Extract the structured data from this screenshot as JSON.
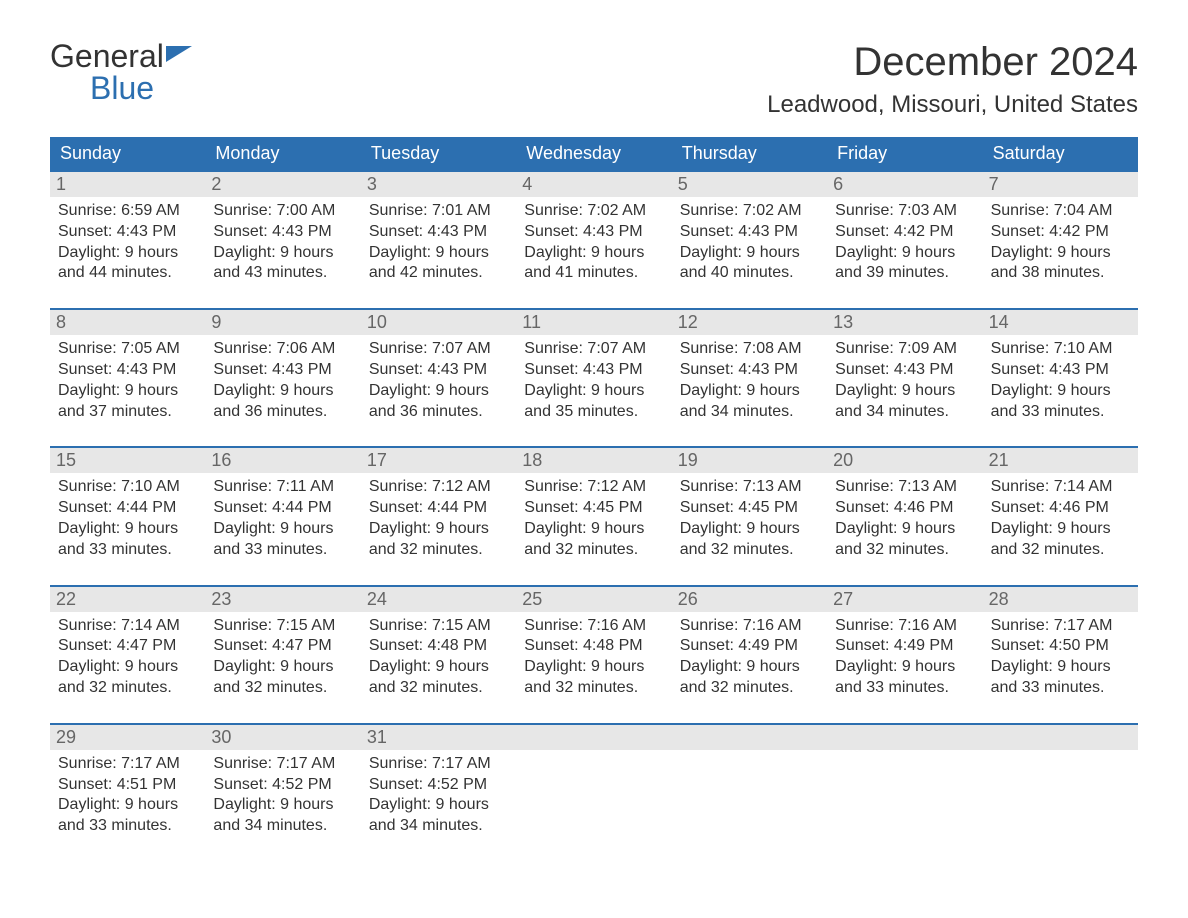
{
  "logo": {
    "line1": "General",
    "line2": "Blue"
  },
  "title": "December 2024",
  "location": "Leadwood, Missouri, United States",
  "colors": {
    "header_bg": "#2c6fb0",
    "header_text": "#ffffff",
    "daynum_bg": "#e7e7e7",
    "daynum_text": "#666666",
    "body_text": "#333333",
    "rule": "#2c6fb0",
    "page_bg": "#ffffff"
  },
  "typography": {
    "title_fontsize": 40,
    "location_fontsize": 24,
    "dow_fontsize": 18,
    "daynum_fontsize": 18,
    "cell_fontsize": 16
  },
  "days_of_week": [
    "Sunday",
    "Monday",
    "Tuesday",
    "Wednesday",
    "Thursday",
    "Friday",
    "Saturday"
  ],
  "weeks": [
    [
      {
        "n": "1",
        "sunrise": "Sunrise: 6:59 AM",
        "sunset": "Sunset: 4:43 PM",
        "d1": "Daylight: 9 hours",
        "d2": "and 44 minutes."
      },
      {
        "n": "2",
        "sunrise": "Sunrise: 7:00 AM",
        "sunset": "Sunset: 4:43 PM",
        "d1": "Daylight: 9 hours",
        "d2": "and 43 minutes."
      },
      {
        "n": "3",
        "sunrise": "Sunrise: 7:01 AM",
        "sunset": "Sunset: 4:43 PM",
        "d1": "Daylight: 9 hours",
        "d2": "and 42 minutes."
      },
      {
        "n": "4",
        "sunrise": "Sunrise: 7:02 AM",
        "sunset": "Sunset: 4:43 PM",
        "d1": "Daylight: 9 hours",
        "d2": "and 41 minutes."
      },
      {
        "n": "5",
        "sunrise": "Sunrise: 7:02 AM",
        "sunset": "Sunset: 4:43 PM",
        "d1": "Daylight: 9 hours",
        "d2": "and 40 minutes."
      },
      {
        "n": "6",
        "sunrise": "Sunrise: 7:03 AM",
        "sunset": "Sunset: 4:42 PM",
        "d1": "Daylight: 9 hours",
        "d2": "and 39 minutes."
      },
      {
        "n": "7",
        "sunrise": "Sunrise: 7:04 AM",
        "sunset": "Sunset: 4:42 PM",
        "d1": "Daylight: 9 hours",
        "d2": "and 38 minutes."
      }
    ],
    [
      {
        "n": "8",
        "sunrise": "Sunrise: 7:05 AM",
        "sunset": "Sunset: 4:43 PM",
        "d1": "Daylight: 9 hours",
        "d2": "and 37 minutes."
      },
      {
        "n": "9",
        "sunrise": "Sunrise: 7:06 AM",
        "sunset": "Sunset: 4:43 PM",
        "d1": "Daylight: 9 hours",
        "d2": "and 36 minutes."
      },
      {
        "n": "10",
        "sunrise": "Sunrise: 7:07 AM",
        "sunset": "Sunset: 4:43 PM",
        "d1": "Daylight: 9 hours",
        "d2": "and 36 minutes."
      },
      {
        "n": "11",
        "sunrise": "Sunrise: 7:07 AM",
        "sunset": "Sunset: 4:43 PM",
        "d1": "Daylight: 9 hours",
        "d2": "and 35 minutes."
      },
      {
        "n": "12",
        "sunrise": "Sunrise: 7:08 AM",
        "sunset": "Sunset: 4:43 PM",
        "d1": "Daylight: 9 hours",
        "d2": "and 34 minutes."
      },
      {
        "n": "13",
        "sunrise": "Sunrise: 7:09 AM",
        "sunset": "Sunset: 4:43 PM",
        "d1": "Daylight: 9 hours",
        "d2": "and 34 minutes."
      },
      {
        "n": "14",
        "sunrise": "Sunrise: 7:10 AM",
        "sunset": "Sunset: 4:43 PM",
        "d1": "Daylight: 9 hours",
        "d2": "and 33 minutes."
      }
    ],
    [
      {
        "n": "15",
        "sunrise": "Sunrise: 7:10 AM",
        "sunset": "Sunset: 4:44 PM",
        "d1": "Daylight: 9 hours",
        "d2": "and 33 minutes."
      },
      {
        "n": "16",
        "sunrise": "Sunrise: 7:11 AM",
        "sunset": "Sunset: 4:44 PM",
        "d1": "Daylight: 9 hours",
        "d2": "and 33 minutes."
      },
      {
        "n": "17",
        "sunrise": "Sunrise: 7:12 AM",
        "sunset": "Sunset: 4:44 PM",
        "d1": "Daylight: 9 hours",
        "d2": "and 32 minutes."
      },
      {
        "n": "18",
        "sunrise": "Sunrise: 7:12 AM",
        "sunset": "Sunset: 4:45 PM",
        "d1": "Daylight: 9 hours",
        "d2": "and 32 minutes."
      },
      {
        "n": "19",
        "sunrise": "Sunrise: 7:13 AM",
        "sunset": "Sunset: 4:45 PM",
        "d1": "Daylight: 9 hours",
        "d2": "and 32 minutes."
      },
      {
        "n": "20",
        "sunrise": "Sunrise: 7:13 AM",
        "sunset": "Sunset: 4:46 PM",
        "d1": "Daylight: 9 hours",
        "d2": "and 32 minutes."
      },
      {
        "n": "21",
        "sunrise": "Sunrise: 7:14 AM",
        "sunset": "Sunset: 4:46 PM",
        "d1": "Daylight: 9 hours",
        "d2": "and 32 minutes."
      }
    ],
    [
      {
        "n": "22",
        "sunrise": "Sunrise: 7:14 AM",
        "sunset": "Sunset: 4:47 PM",
        "d1": "Daylight: 9 hours",
        "d2": "and 32 minutes."
      },
      {
        "n": "23",
        "sunrise": "Sunrise: 7:15 AM",
        "sunset": "Sunset: 4:47 PM",
        "d1": "Daylight: 9 hours",
        "d2": "and 32 minutes."
      },
      {
        "n": "24",
        "sunrise": "Sunrise: 7:15 AM",
        "sunset": "Sunset: 4:48 PM",
        "d1": "Daylight: 9 hours",
        "d2": "and 32 minutes."
      },
      {
        "n": "25",
        "sunrise": "Sunrise: 7:16 AM",
        "sunset": "Sunset: 4:48 PM",
        "d1": "Daylight: 9 hours",
        "d2": "and 32 minutes."
      },
      {
        "n": "26",
        "sunrise": "Sunrise: 7:16 AM",
        "sunset": "Sunset: 4:49 PM",
        "d1": "Daylight: 9 hours",
        "d2": "and 32 minutes."
      },
      {
        "n": "27",
        "sunrise": "Sunrise: 7:16 AM",
        "sunset": "Sunset: 4:49 PM",
        "d1": "Daylight: 9 hours",
        "d2": "and 33 minutes."
      },
      {
        "n": "28",
        "sunrise": "Sunrise: 7:17 AM",
        "sunset": "Sunset: 4:50 PM",
        "d1": "Daylight: 9 hours",
        "d2": "and 33 minutes."
      }
    ],
    [
      {
        "n": "29",
        "sunrise": "Sunrise: 7:17 AM",
        "sunset": "Sunset: 4:51 PM",
        "d1": "Daylight: 9 hours",
        "d2": "and 33 minutes."
      },
      {
        "n": "30",
        "sunrise": "Sunrise: 7:17 AM",
        "sunset": "Sunset: 4:52 PM",
        "d1": "Daylight: 9 hours",
        "d2": "and 34 minutes."
      },
      {
        "n": "31",
        "sunrise": "Sunrise: 7:17 AM",
        "sunset": "Sunset: 4:52 PM",
        "d1": "Daylight: 9 hours",
        "d2": "and 34 minutes."
      },
      null,
      null,
      null,
      null
    ]
  ]
}
